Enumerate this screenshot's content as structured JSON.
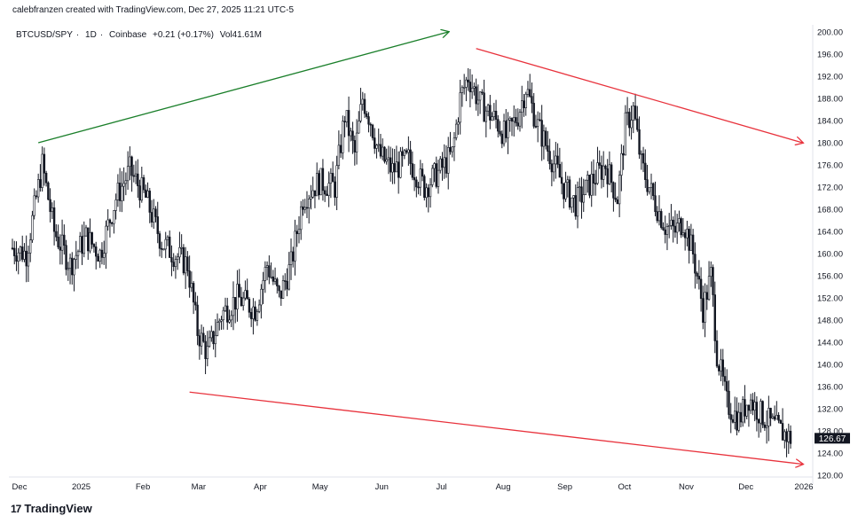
{
  "header": {
    "attribution": "calebfranzen created with TradingView.com, Dec 27, 2025 11:21 UTC-5"
  },
  "legend": {
    "symbol": "BTCUSD/SPY",
    "interval": "1D",
    "exchange": "Coinbase",
    "change": "+0.21 (+0.17%)",
    "volume": "Vol41.61M"
  },
  "footer": {
    "brand": "TradingView",
    "logo_text": "17"
  },
  "colors": {
    "up_trend": "#1a7f2a",
    "down_trend": "#e8323c",
    "candle": "#131722",
    "last_price_bg": "#131722"
  },
  "chart_data": {
    "type": "candlestick",
    "title": "",
    "xlabel": "",
    "ylabel": "",
    "ylim": [
      119,
      201
    ],
    "yticks": [
      120,
      124,
      128,
      132,
      136,
      140,
      144,
      148,
      152,
      156,
      160,
      164,
      168,
      172,
      176,
      180,
      184,
      188,
      192,
      196,
      200
    ],
    "xticks": [
      "Dec",
      "2025",
      "Feb",
      "Mar",
      "Apr",
      "May",
      "Jun",
      "Jul",
      "Aug",
      "Sep",
      "Oct",
      "Nov",
      "Dec",
      "2026"
    ],
    "last_price": "126.67",
    "close_path": [
      {
        "date": "2024-12-01",
        "value": 161
      },
      {
        "date": "2024-12-08",
        "value": 160
      },
      {
        "date": "2024-12-16",
        "value": 176
      },
      {
        "date": "2024-12-22",
        "value": 164
      },
      {
        "date": "2024-12-30",
        "value": 158
      },
      {
        "date": "2025-01-07",
        "value": 163
      },
      {
        "date": "2025-01-14",
        "value": 160
      },
      {
        "date": "2025-01-22",
        "value": 170
      },
      {
        "date": "2025-01-29",
        "value": 175
      },
      {
        "date": "2025-02-06",
        "value": 170
      },
      {
        "date": "2025-02-14",
        "value": 162
      },
      {
        "date": "2025-02-20",
        "value": 160
      },
      {
        "date": "2025-02-27",
        "value": 158
      },
      {
        "date": "2025-03-04",
        "value": 146
      },
      {
        "date": "2025-03-09",
        "value": 142
      },
      {
        "date": "2025-03-16",
        "value": 149
      },
      {
        "date": "2025-03-24",
        "value": 152
      },
      {
        "date": "2025-04-02",
        "value": 150
      },
      {
        "date": "2025-04-08",
        "value": 158
      },
      {
        "date": "2025-04-14",
        "value": 152
      },
      {
        "date": "2025-04-20",
        "value": 158
      },
      {
        "date": "2025-04-26",
        "value": 170
      },
      {
        "date": "2025-05-04",
        "value": 173
      },
      {
        "date": "2025-05-12",
        "value": 172
      },
      {
        "date": "2025-05-17",
        "value": 185
      },
      {
        "date": "2025-05-22",
        "value": 178
      },
      {
        "date": "2025-05-26",
        "value": 188
      },
      {
        "date": "2025-05-30",
        "value": 184
      },
      {
        "date": "2025-06-03",
        "value": 178
      },
      {
        "date": "2025-06-10",
        "value": 175
      },
      {
        "date": "2025-06-18",
        "value": 177
      },
      {
        "date": "2025-06-26",
        "value": 172
      },
      {
        "date": "2025-07-04",
        "value": 175
      },
      {
        "date": "2025-07-10",
        "value": 178
      },
      {
        "date": "2025-07-14",
        "value": 188
      },
      {
        "date": "2025-07-18",
        "value": 192
      },
      {
        "date": "2025-07-24",
        "value": 187
      },
      {
        "date": "2025-08-01",
        "value": 184
      },
      {
        "date": "2025-08-06",
        "value": 181
      },
      {
        "date": "2025-08-12",
        "value": 185
      },
      {
        "date": "2025-08-16",
        "value": 190
      },
      {
        "date": "2025-08-22",
        "value": 183
      },
      {
        "date": "2025-08-28",
        "value": 178
      },
      {
        "date": "2025-09-04",
        "value": 172
      },
      {
        "date": "2025-09-10",
        "value": 169
      },
      {
        "date": "2025-09-18",
        "value": 173
      },
      {
        "date": "2025-09-25",
        "value": 176
      },
      {
        "date": "2025-10-01",
        "value": 170
      },
      {
        "date": "2025-10-05",
        "value": 183
      },
      {
        "date": "2025-10-09",
        "value": 186
      },
      {
        "date": "2025-10-13",
        "value": 176
      },
      {
        "date": "2025-10-19",
        "value": 170
      },
      {
        "date": "2025-10-25",
        "value": 165
      },
      {
        "date": "2025-10-30",
        "value": 164
      },
      {
        "date": "2025-11-03",
        "value": 166
      },
      {
        "date": "2025-11-08",
        "value": 160
      },
      {
        "date": "2025-11-13",
        "value": 150
      },
      {
        "date": "2025-11-17",
        "value": 156
      },
      {
        "date": "2025-11-20",
        "value": 142
      },
      {
        "date": "2025-11-25",
        "value": 133
      },
      {
        "date": "2025-12-01",
        "value": 130
      },
      {
        "date": "2025-12-06",
        "value": 134
      },
      {
        "date": "2025-12-12",
        "value": 131
      },
      {
        "date": "2025-12-18",
        "value": 129
      },
      {
        "date": "2025-12-27",
        "value": 126.67
      }
    ],
    "annotations": [
      {
        "type": "arrow",
        "color": "up_trend",
        "from": {
          "date": "2024-12-14",
          "value": 180
        },
        "to": {
          "date": "2025-07-08",
          "value": 200
        }
      },
      {
        "type": "arrow",
        "color": "down_trend",
        "from": {
          "date": "2025-07-22",
          "value": 197
        },
        "to": {
          "date": "2026-01-02",
          "value": 180
        }
      },
      {
        "type": "arrow",
        "color": "down_trend",
        "from": {
          "date": "2025-02-28",
          "value": 135
        },
        "to": {
          "date": "2026-01-02",
          "value": 122
        }
      }
    ]
  }
}
